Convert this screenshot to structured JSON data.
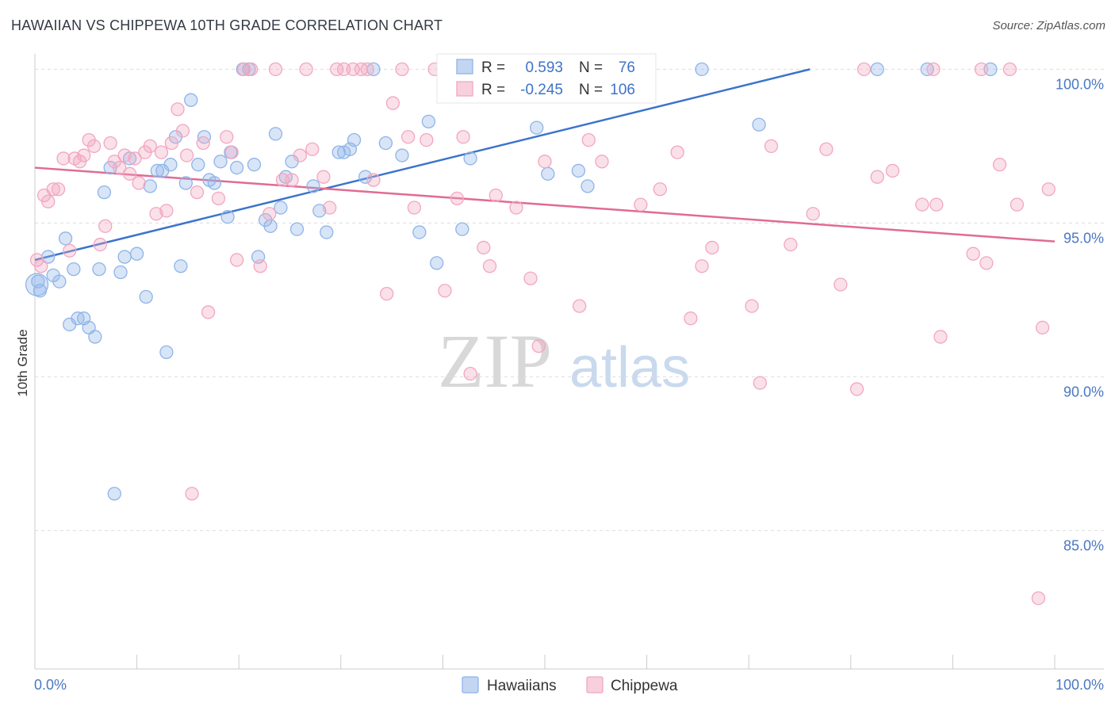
{
  "title": "HAWAIIAN VS CHIPPEWA 10TH GRADE CORRELATION CHART",
  "source": "Source: ZipAtlas.com",
  "chart_data": {
    "type": "scatter",
    "title": "HAWAIIAN VS CHIPPEWA 10TH GRADE CORRELATION CHART",
    "ylabel": "10th Grade",
    "xlabel": "",
    "xlim": [
      0,
      100
    ],
    "ylim": [
      80.5,
      100.5
    ],
    "x_tick_labels": [
      "0.0%",
      "100.0%"
    ],
    "y_ticks": [
      85,
      90,
      95,
      100
    ],
    "y_tick_labels": [
      "85.0%",
      "90.0%",
      "95.0%",
      "100.0%"
    ],
    "grid": "horizontal dashed",
    "legend_position": "top-center",
    "legend": [
      {
        "series": "Hawaiians",
        "r_label": "R =",
        "r_value": "0.593",
        "n_label": "N =",
        "n_value": "76",
        "color": "#8fb4e8",
        "line_color": "#3a74cc"
      },
      {
        "series": "Chippewa",
        "r_label": "R =",
        "r_value": "-0.245",
        "n_label": "N =",
        "n_value": "106",
        "color": "#f2a7bf",
        "line_color": "#e06b95"
      }
    ],
    "series": [
      {
        "name": "Hawaiians",
        "color": "#8fb4e8",
        "trend": {
          "x": [
            0,
            76
          ],
          "y": [
            93.8,
            100
          ]
        },
        "points": [
          [
            0.3,
            93.1
          ],
          [
            0.5,
            92.8
          ],
          [
            1.3,
            93.9
          ],
          [
            1.8,
            93.3
          ],
          [
            2.4,
            93.1
          ],
          [
            3.0,
            94.5
          ],
          [
            3.4,
            91.7
          ],
          [
            3.8,
            93.5
          ],
          [
            4.2,
            91.9
          ],
          [
            4.8,
            91.9
          ],
          [
            5.3,
            91.6
          ],
          [
            5.9,
            91.3
          ],
          [
            6.3,
            93.5
          ],
          [
            6.8,
            96.0
          ],
          [
            7.4,
            96.8
          ],
          [
            7.8,
            86.2
          ],
          [
            8.4,
            93.4
          ],
          [
            8.8,
            93.9
          ],
          [
            9.3,
            97.1
          ],
          [
            10.0,
            94.0
          ],
          [
            10.9,
            92.6
          ],
          [
            11.3,
            96.2
          ],
          [
            12.0,
            96.7
          ],
          [
            12.5,
            96.7
          ],
          [
            12.9,
            90.8
          ],
          [
            13.3,
            96.9
          ],
          [
            13.8,
            97.8
          ],
          [
            14.3,
            93.6
          ],
          [
            14.8,
            96.3
          ],
          [
            15.3,
            99.0
          ],
          [
            16.0,
            96.9
          ],
          [
            16.6,
            97.8
          ],
          [
            17.1,
            96.4
          ],
          [
            17.6,
            96.3
          ],
          [
            18.2,
            97.0
          ],
          [
            18.9,
            95.2
          ],
          [
            19.2,
            97.3
          ],
          [
            19.8,
            96.8
          ],
          [
            20.4,
            100
          ],
          [
            21.0,
            100
          ],
          [
            21.5,
            96.9
          ],
          [
            21.9,
            93.9
          ],
          [
            22.6,
            95.1
          ],
          [
            23.1,
            94.9
          ],
          [
            23.6,
            97.9
          ],
          [
            24.1,
            95.5
          ],
          [
            24.6,
            96.5
          ],
          [
            25.2,
            97.0
          ],
          [
            25.7,
            94.8
          ],
          [
            27.3,
            96.2
          ],
          [
            27.9,
            95.4
          ],
          [
            28.6,
            94.7
          ],
          [
            29.8,
            97.3
          ],
          [
            30.3,
            97.3
          ],
          [
            30.9,
            97.4
          ],
          [
            31.3,
            97.7
          ],
          [
            32.4,
            96.5
          ],
          [
            33.2,
            100
          ],
          [
            34.4,
            97.6
          ],
          [
            36.0,
            97.2
          ],
          [
            37.7,
            94.7
          ],
          [
            38.6,
            98.3
          ],
          [
            39.4,
            93.7
          ],
          [
            41.9,
            94.8
          ],
          [
            42.7,
            97.1
          ],
          [
            46.2,
            100
          ],
          [
            49.2,
            98.1
          ],
          [
            50.3,
            96.6
          ],
          [
            53.3,
            96.7
          ],
          [
            54.2,
            96.2
          ],
          [
            60.2,
            100
          ],
          [
            65.4,
            100
          ],
          [
            71.0,
            98.2
          ],
          [
            82.6,
            100
          ],
          [
            87.5,
            100
          ],
          [
            93.7,
            100
          ]
        ]
      },
      {
        "name": "Chippewa",
        "color": "#f2a7bf",
        "trend": {
          "x": [
            0,
            100
          ],
          "y": [
            96.8,
            94.4
          ]
        },
        "points": [
          [
            0.2,
            93.8
          ],
          [
            0.6,
            93.6
          ],
          [
            0.9,
            95.9
          ],
          [
            1.3,
            95.7
          ],
          [
            1.8,
            96.1
          ],
          [
            2.3,
            96.1
          ],
          [
            2.8,
            97.1
          ],
          [
            3.4,
            94.1
          ],
          [
            3.9,
            97.1
          ],
          [
            4.4,
            97.0
          ],
          [
            4.8,
            97.2
          ],
          [
            5.3,
            97.7
          ],
          [
            5.8,
            97.5
          ],
          [
            6.4,
            94.3
          ],
          [
            6.9,
            94.9
          ],
          [
            7.4,
            97.6
          ],
          [
            7.8,
            97.0
          ],
          [
            8.3,
            96.8
          ],
          [
            8.8,
            97.2
          ],
          [
            9.3,
            96.6
          ],
          [
            9.8,
            97.1
          ],
          [
            10.2,
            96.3
          ],
          [
            10.8,
            97.3
          ],
          [
            11.3,
            97.5
          ],
          [
            11.9,
            95.3
          ],
          [
            12.4,
            97.3
          ],
          [
            12.9,
            95.4
          ],
          [
            13.4,
            97.6
          ],
          [
            14.0,
            98.7
          ],
          [
            14.5,
            98.0
          ],
          [
            14.9,
            97.2
          ],
          [
            15.4,
            86.2
          ],
          [
            15.9,
            96.0
          ],
          [
            16.5,
            97.6
          ],
          [
            17.0,
            92.1
          ],
          [
            18.0,
            95.8
          ],
          [
            18.8,
            97.8
          ],
          [
            19.3,
            97.3
          ],
          [
            19.8,
            93.8
          ],
          [
            20.5,
            100
          ],
          [
            21.2,
            100
          ],
          [
            22.1,
            93.6
          ],
          [
            23.0,
            95.3
          ],
          [
            23.6,
            100
          ],
          [
            24.3,
            96.4
          ],
          [
            25.2,
            96.4
          ],
          [
            26.0,
            97.2
          ],
          [
            26.6,
            100
          ],
          [
            27.2,
            97.4
          ],
          [
            28.3,
            96.5
          ],
          [
            28.9,
            95.5
          ],
          [
            29.6,
            100
          ],
          [
            30.3,
            100
          ],
          [
            31.2,
            100
          ],
          [
            32.0,
            100
          ],
          [
            32.6,
            100
          ],
          [
            33.2,
            96.4
          ],
          [
            34.5,
            92.7
          ],
          [
            35.1,
            98.9
          ],
          [
            36.0,
            100
          ],
          [
            36.6,
            97.8
          ],
          [
            37.2,
            95.5
          ],
          [
            38.4,
            97.7
          ],
          [
            39.2,
            100
          ],
          [
            40.2,
            92.8
          ],
          [
            41.4,
            95.8
          ],
          [
            42.0,
            97.8
          ],
          [
            42.7,
            90.1
          ],
          [
            44.0,
            94.2
          ],
          [
            44.6,
            93.6
          ],
          [
            45.2,
            95.9
          ],
          [
            46.0,
            100
          ],
          [
            47.2,
            95.5
          ],
          [
            48.6,
            93.2
          ],
          [
            49.4,
            91.0
          ],
          [
            50.0,
            97.0
          ],
          [
            53.4,
            92.3
          ],
          [
            54.3,
            97.7
          ],
          [
            55.6,
            97.0
          ],
          [
            59.4,
            95.6
          ],
          [
            61.3,
            96.1
          ],
          [
            63.0,
            97.3
          ],
          [
            64.3,
            91.9
          ],
          [
            65.4,
            93.6
          ],
          [
            66.4,
            94.2
          ],
          [
            70.3,
            92.3
          ],
          [
            71.1,
            89.8
          ],
          [
            72.2,
            97.5
          ],
          [
            74.1,
            94.3
          ],
          [
            76.3,
            95.3
          ],
          [
            77.6,
            97.4
          ],
          [
            79.0,
            93.0
          ],
          [
            80.6,
            89.6
          ],
          [
            81.3,
            100
          ],
          [
            82.6,
            96.5
          ],
          [
            84.1,
            96.7
          ],
          [
            87.0,
            95.6
          ],
          [
            88.1,
            100
          ],
          [
            88.4,
            95.6
          ],
          [
            88.8,
            91.3
          ],
          [
            92.0,
            94.0
          ],
          [
            92.8,
            100
          ],
          [
            93.3,
            93.7
          ],
          [
            94.6,
            96.9
          ],
          [
            95.6,
            100
          ],
          [
            96.3,
            95.6
          ],
          [
            98.4,
            82.8
          ],
          [
            98.8,
            91.6
          ],
          [
            99.4,
            96.1
          ]
        ]
      }
    ]
  },
  "bottom_legend": [
    {
      "label": "Hawaiians",
      "color": "#8fb4e8"
    },
    {
      "label": "Chippewa",
      "color": "#f2a7bf"
    }
  ],
  "watermark": {
    "zip": "ZIP",
    "atlas": "atlas"
  }
}
